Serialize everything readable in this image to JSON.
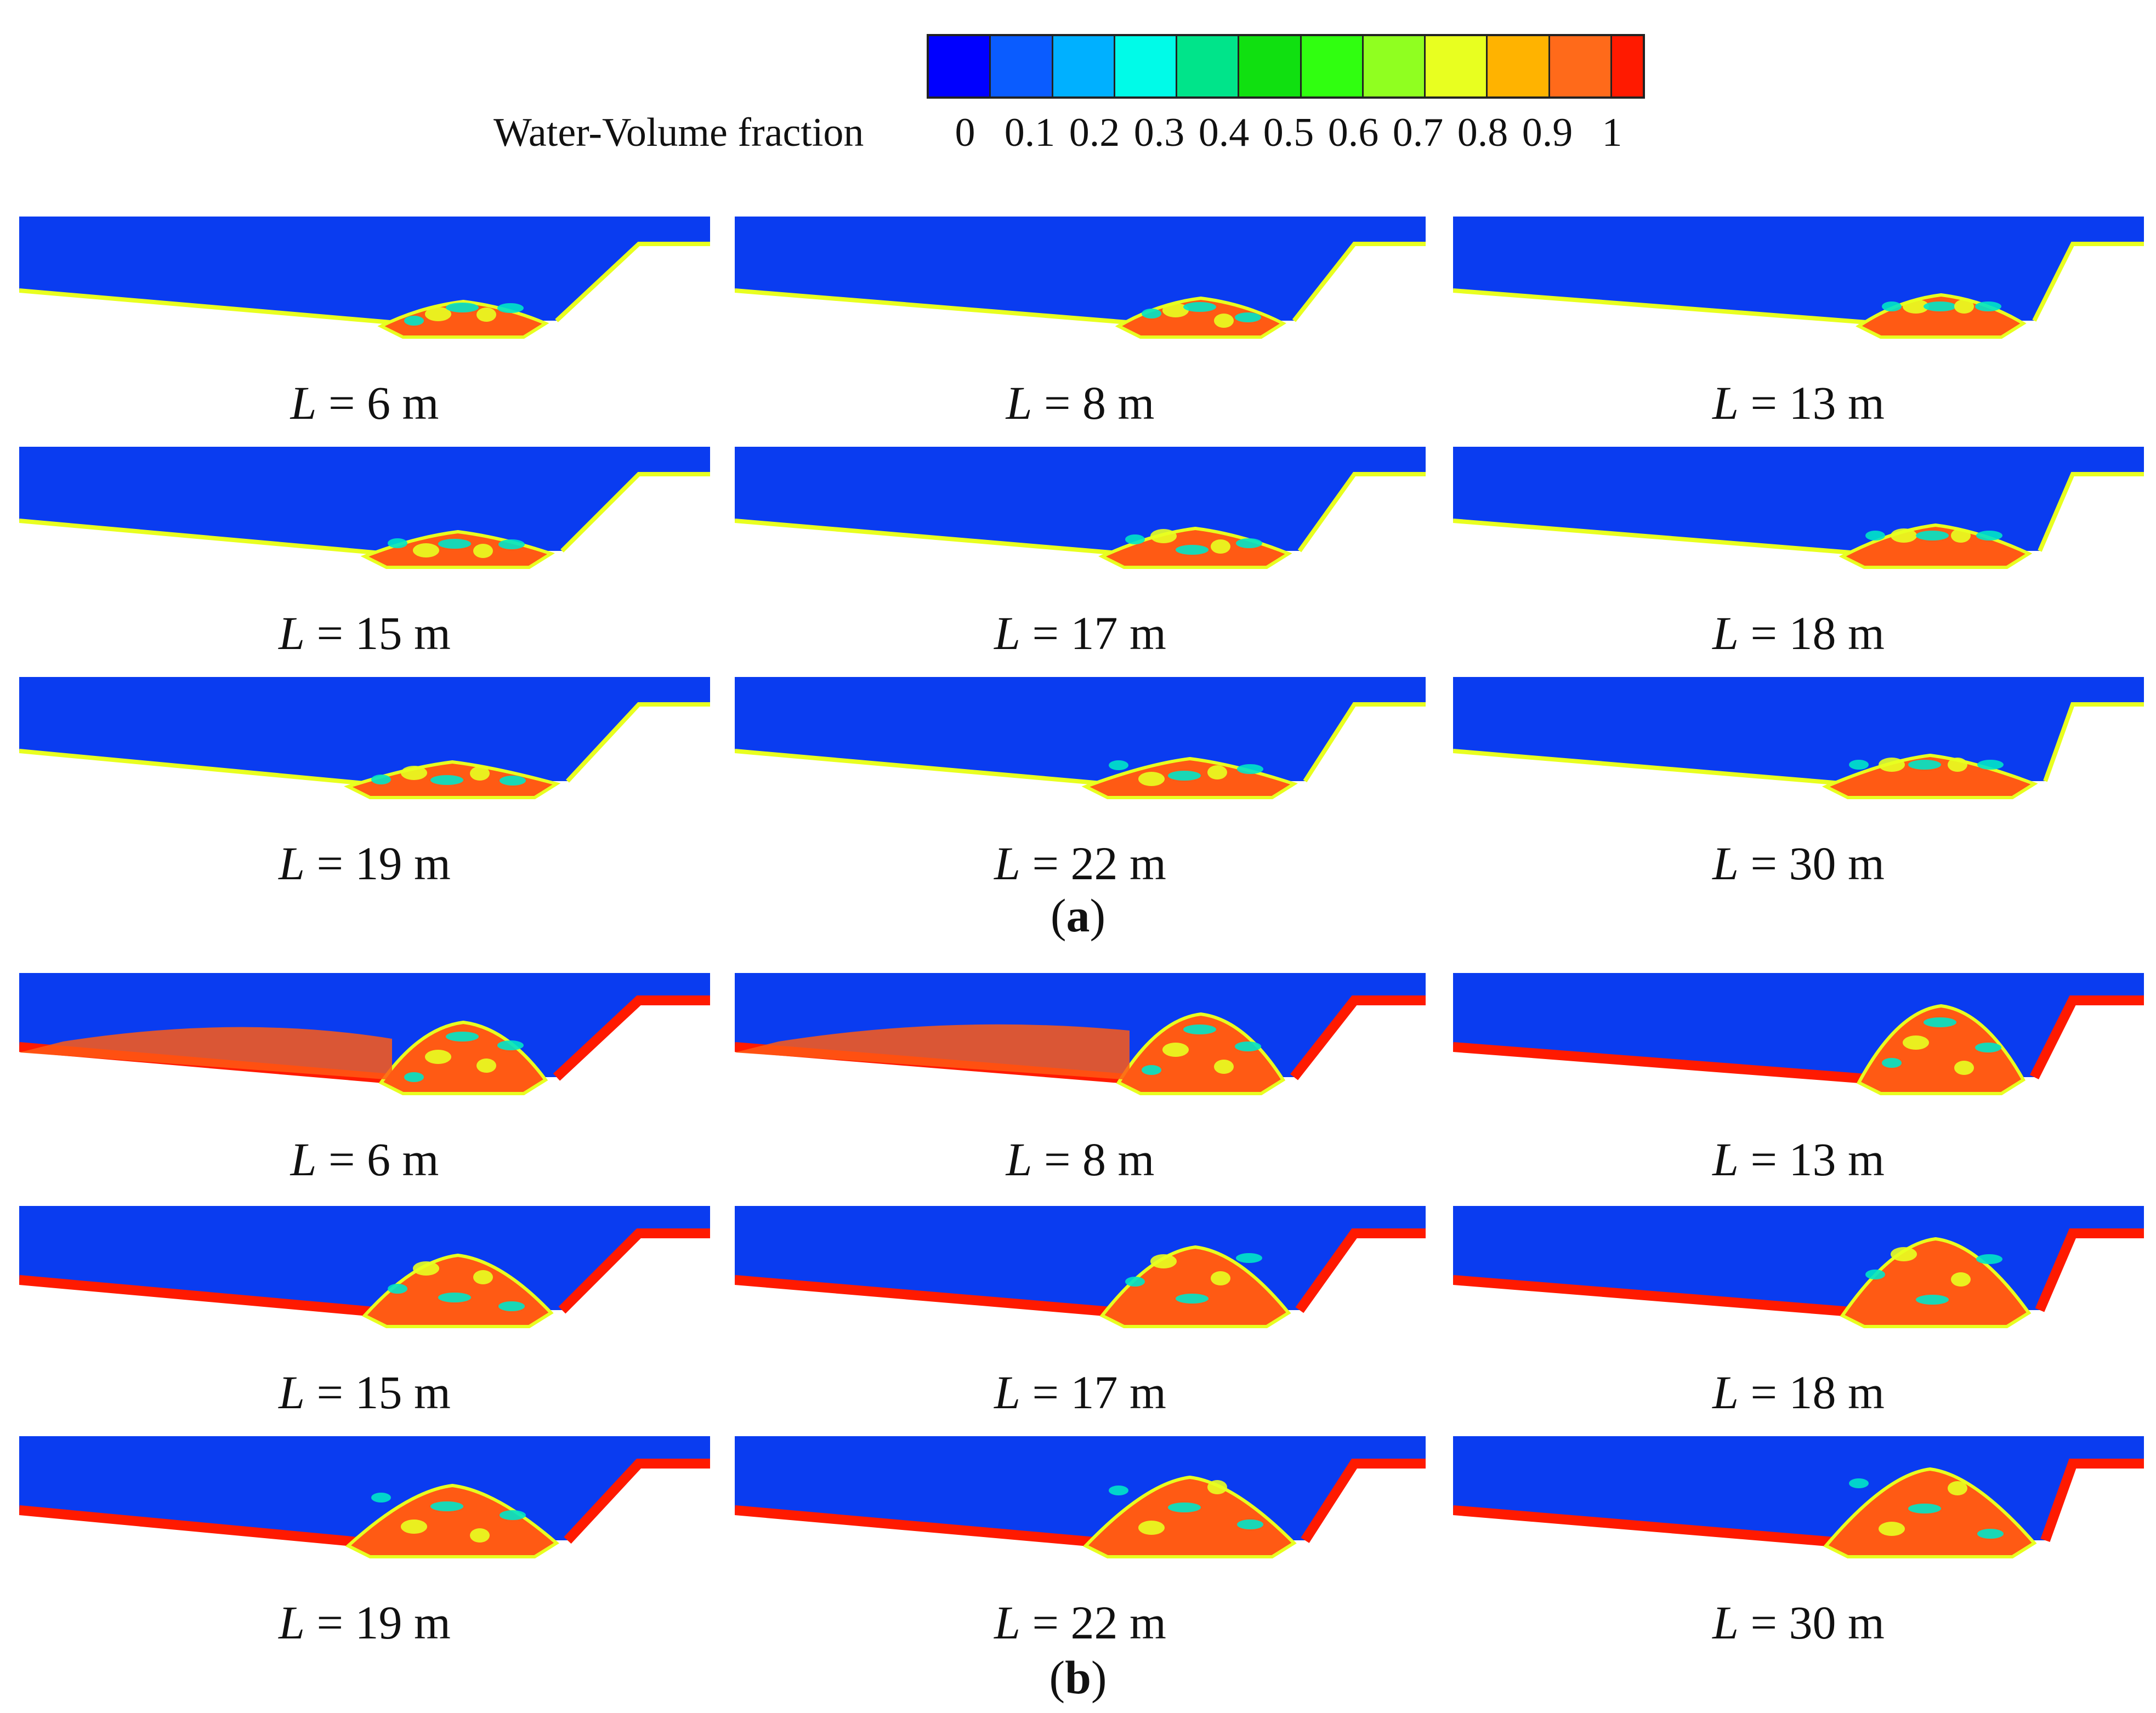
{
  "colorbar": {
    "title": "Water-Volume fraction",
    "ticks": [
      "0",
      "0.1",
      "0.2",
      "0.3",
      "0.4",
      "0.5",
      "0.6",
      "0.7",
      "0.8",
      "0.9",
      "1"
    ],
    "colors": [
      "#0000ff",
      "#0a5cff",
      "#00b0ff",
      "#00fbe8",
      "#00e48a",
      "#10e010",
      "#30ff10",
      "#90ff20",
      "#e8ff20",
      "#ffb300",
      "#ff6a1a",
      "#ff1a00"
    ]
  },
  "groups": [
    {
      "label": "a",
      "panels": [
        {
          "var": "L",
          "value": "6 m"
        },
        {
          "var": "L",
          "value": "8 m"
        },
        {
          "var": "L",
          "value": "13 m"
        },
        {
          "var": "L",
          "value": "15 m"
        },
        {
          "var": "L",
          "value": "17 m"
        },
        {
          "var": "L",
          "value": "18 m"
        },
        {
          "var": "L",
          "value": "19 m"
        },
        {
          "var": "L",
          "value": "22 m"
        },
        {
          "var": "L",
          "value": "30 m"
        }
      ]
    },
    {
      "label": "b",
      "panels": [
        {
          "var": "L",
          "value": "6 m"
        },
        {
          "var": "L",
          "value": "8 m"
        },
        {
          "var": "L",
          "value": "13 m"
        },
        {
          "var": "L",
          "value": "15 m"
        },
        {
          "var": "L",
          "value": "17 m"
        },
        {
          "var": "L",
          "value": "18 m"
        },
        {
          "var": "L",
          "value": "19 m"
        },
        {
          "var": "L",
          "value": "22 m"
        },
        {
          "var": "L",
          "value": "30 m"
        }
      ]
    }
  ],
  "palette": {
    "water": "#0a3cf0",
    "mud": "#ff5a14",
    "mud_edge": "#e8ff20",
    "mud_cyan": "#00e4c8",
    "wall": "#ff1a00"
  }
}
